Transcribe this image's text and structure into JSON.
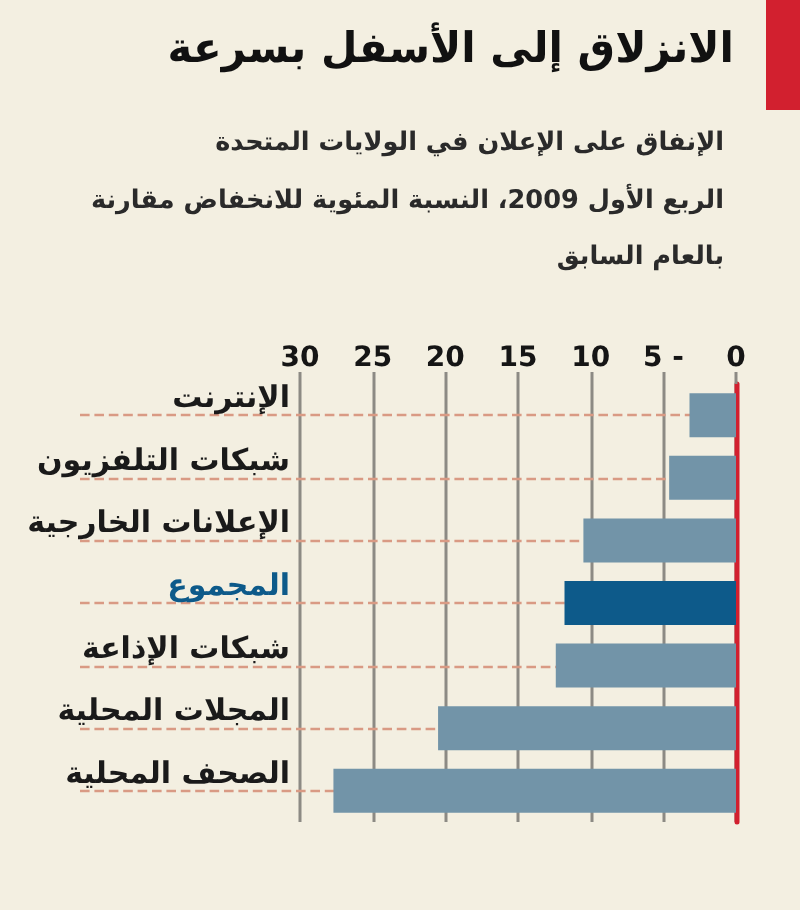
{
  "chart_data": {
    "type": "bar",
    "orientation": "horizontal",
    "title": "الانزلاق إلى الأسفل بسرعة",
    "subtitle": "الإنفاق على الإعلان في الولايات المتحدة\nالربع الأول 2009، النسبة المئوية للانخفاض مقارنة\nبالعام السابق",
    "categories": [
      "الإنترنت",
      "شبكات التلفزيون",
      "الإعلانات الخارجية",
      "المجموع",
      "شبكات الإذاعة",
      "المجلات المحلية",
      "الصحف المحلية"
    ],
    "values": [
      3.2,
      4.6,
      10.5,
      11.8,
      12.4,
      20.5,
      27.7
    ],
    "colors": [
      "#7294a8",
      "#7294a8",
      "#7294a8",
      "#0d5a8a",
      "#7294a8",
      "#7294a8",
      "#7294a8"
    ],
    "xlim": [
      30,
      0
    ],
    "xticks": [
      30,
      25,
      20,
      15,
      10,
      {
        "value": 5,
        "label": "5 -"
      },
      0
    ],
    "grid": true
  }
}
